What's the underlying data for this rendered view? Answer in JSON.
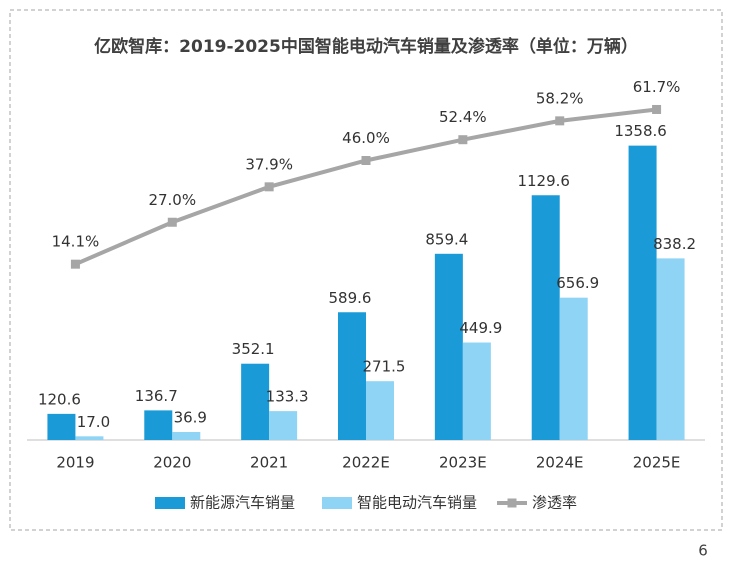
{
  "chart_data": {
    "type": "bar",
    "title": "亿欧智库：2019-2025中国智能电动汽车销量及渗透率（单位：万辆）",
    "categories": [
      "2019",
      "2020",
      "2021",
      "2022E",
      "2023E",
      "2024E",
      "2025E"
    ],
    "series": [
      {
        "name": "新能源汽车销量",
        "color": "#1a9ad6",
        "type": "bar",
        "values": [
          120.6,
          136.7,
          352.1,
          589.6,
          859.4,
          1129.6,
          1358.6
        ]
      },
      {
        "name": "智能电动汽车销量",
        "color": "#8fd4f4",
        "type": "bar",
        "values": [
          17.0,
          36.9,
          133.3,
          271.5,
          449.9,
          656.9,
          838.2
        ],
        "value_labels": [
          "17.0",
          "36.9",
          "133.3",
          "271.5",
          "449.9",
          "656.9",
          "838.2"
        ]
      },
      {
        "name": "渗透率",
        "color": "#a6a6a6",
        "type": "line",
        "axis": "y2",
        "values": [
          14.1,
          27.0,
          37.9,
          46.0,
          52.4,
          58.2,
          61.7
        ],
        "value_labels": [
          "14.1%",
          "27.0%",
          "37.9%",
          "46.0%",
          "52.4%",
          "58.2%",
          "61.7%"
        ]
      }
    ],
    "ylim": [
      0,
      1500
    ],
    "y2lim": [
      -40,
      60
    ]
  },
  "page_number": "6"
}
